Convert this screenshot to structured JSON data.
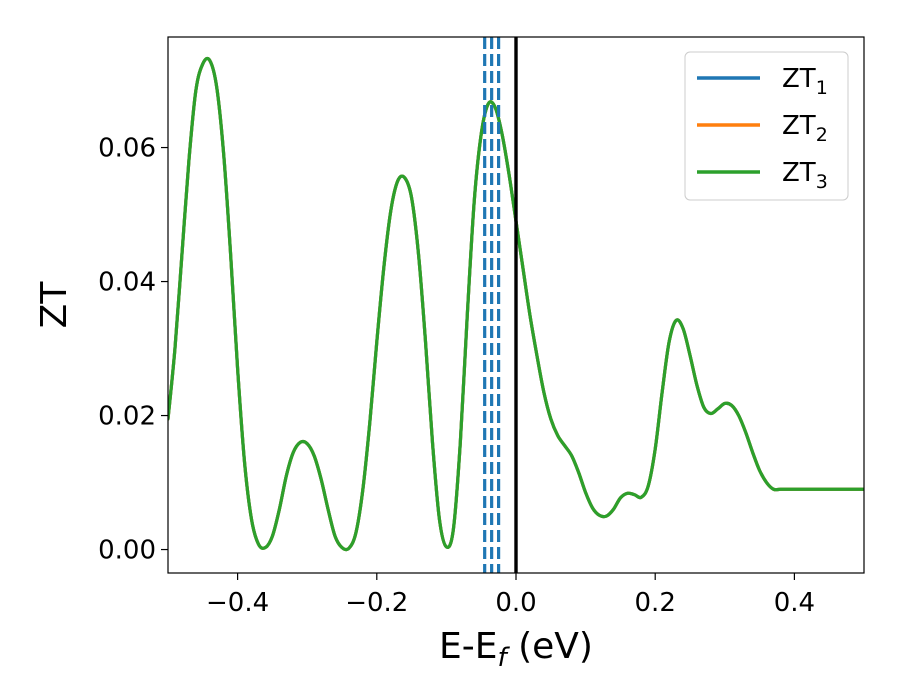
{
  "chart_data": {
    "type": "line",
    "title": "",
    "xlabel": {
      "main": "E-E",
      "sub": "f",
      "suffix": " (eV)"
    },
    "ylabel": "ZT",
    "xlim": [
      -0.5,
      0.5
    ],
    "ylim": [
      -0.0035,
      0.0765
    ],
    "x_ticks": [
      {
        "value": -0.4,
        "label": "−0.4"
      },
      {
        "value": -0.2,
        "label": "−0.2"
      },
      {
        "value": 0.0,
        "label": "0.0"
      },
      {
        "value": 0.2,
        "label": "0.2"
      },
      {
        "value": 0.4,
        "label": "0.4"
      }
    ],
    "y_ticks": [
      {
        "value": 0.0,
        "label": "0.00"
      },
      {
        "value": 0.02,
        "label": "0.02"
      },
      {
        "value": 0.04,
        "label": "0.04"
      },
      {
        "value": 0.06,
        "label": "0.06"
      }
    ],
    "grid": false,
    "legend": {
      "placement": "top-right",
      "entries": [
        {
          "main": "ZT",
          "sub": "1",
          "color": "#1f77b4"
        },
        {
          "main": "ZT",
          "sub": "2",
          "color": "#ff7f0e"
        },
        {
          "main": "ZT",
          "sub": "3",
          "color": "#2ca02c"
        }
      ]
    },
    "series_colors": [
      "#1f77b4",
      "#ff7f0e",
      "#2ca02c"
    ],
    "x": [
      -0.5,
      -0.49,
      -0.48,
      -0.47,
      -0.46,
      -0.45,
      -0.44,
      -0.43,
      -0.42,
      -0.41,
      -0.4,
      -0.39,
      -0.38,
      -0.37,
      -0.36,
      -0.35,
      -0.34,
      -0.33,
      -0.32,
      -0.31,
      -0.3,
      -0.29,
      -0.28,
      -0.27,
      -0.26,
      -0.25,
      -0.24,
      -0.23,
      -0.22,
      -0.21,
      -0.2,
      -0.19,
      -0.18,
      -0.17,
      -0.16,
      -0.15,
      -0.14,
      -0.13,
      -0.12,
      -0.11,
      -0.1,
      -0.09,
      -0.08,
      -0.07,
      -0.06,
      -0.05,
      -0.04,
      -0.03,
      -0.02,
      -0.01,
      0.0,
      0.01,
      0.02,
      0.03,
      0.04,
      0.05,
      0.06,
      0.07,
      0.08,
      0.09,
      0.1,
      0.11,
      0.12,
      0.13,
      0.14,
      0.15,
      0.16,
      0.17,
      0.18,
      0.19,
      0.2,
      0.21,
      0.22,
      0.23,
      0.24,
      0.25,
      0.26,
      0.27,
      0.28,
      0.29,
      0.3,
      0.31,
      0.32,
      0.33,
      0.34,
      0.35,
      0.36,
      0.37,
      0.38,
      0.39,
      0.4,
      0.41,
      0.42,
      0.43,
      0.44,
      0.45,
      0.46,
      0.47,
      0.48,
      0.49,
      0.5
    ],
    "series": [
      {
        "name": "ZT1",
        "values": [
          0.0195,
          0.03,
          0.044,
          0.058,
          0.0685,
          0.0725,
          0.073,
          0.069,
          0.059,
          0.044,
          0.027,
          0.013,
          0.0045,
          0.0008,
          0.0003,
          0.002,
          0.006,
          0.011,
          0.0145,
          0.016,
          0.0158,
          0.014,
          0.0105,
          0.006,
          0.002,
          0.0003,
          0.0002,
          0.0025,
          0.009,
          0.019,
          0.031,
          0.042,
          0.0505,
          0.055,
          0.0555,
          0.0525,
          0.044,
          0.031,
          0.016,
          0.0045,
          0.0004,
          0.003,
          0.016,
          0.035,
          0.052,
          0.062,
          0.0665,
          0.066,
          0.062,
          0.056,
          0.049,
          0.042,
          0.035,
          0.029,
          0.0235,
          0.0195,
          0.017,
          0.0155,
          0.014,
          0.0115,
          0.0085,
          0.0062,
          0.0051,
          0.005,
          0.006,
          0.0077,
          0.0084,
          0.0082,
          0.0078,
          0.0095,
          0.015,
          0.0235,
          0.031,
          0.0342,
          0.033,
          0.029,
          0.0245,
          0.0212,
          0.0203,
          0.021,
          0.0218,
          0.0215,
          0.02,
          0.0175,
          0.0145,
          0.0118,
          0.01,
          0.009,
          0.009,
          0.009,
          0.009,
          0.009,
          0.009,
          0.009,
          0.009,
          0.009,
          0.009,
          0.009,
          0.009,
          0.009,
          0.009
        ]
      },
      {
        "name": "ZT2",
        "values": [
          0.0195,
          0.03,
          0.044,
          0.058,
          0.0685,
          0.0725,
          0.073,
          0.069,
          0.059,
          0.044,
          0.027,
          0.013,
          0.0045,
          0.0008,
          0.0003,
          0.002,
          0.006,
          0.011,
          0.0145,
          0.016,
          0.0158,
          0.014,
          0.0105,
          0.006,
          0.002,
          0.0003,
          0.0002,
          0.0025,
          0.009,
          0.019,
          0.031,
          0.042,
          0.0505,
          0.055,
          0.0555,
          0.0525,
          0.044,
          0.031,
          0.016,
          0.0045,
          0.0004,
          0.003,
          0.016,
          0.035,
          0.052,
          0.062,
          0.0665,
          0.066,
          0.062,
          0.056,
          0.049,
          0.042,
          0.035,
          0.029,
          0.0235,
          0.0195,
          0.017,
          0.0155,
          0.014,
          0.0115,
          0.0085,
          0.0062,
          0.0051,
          0.005,
          0.006,
          0.0077,
          0.0084,
          0.0082,
          0.0078,
          0.0095,
          0.015,
          0.0235,
          0.031,
          0.0342,
          0.033,
          0.029,
          0.0245,
          0.0212,
          0.0203,
          0.021,
          0.0218,
          0.0215,
          0.02,
          0.0175,
          0.0145,
          0.0118,
          0.01,
          0.009,
          0.009,
          0.009,
          0.009,
          0.009,
          0.009,
          0.009,
          0.009,
          0.009,
          0.009,
          0.009,
          0.009,
          0.009,
          0.009
        ]
      },
      {
        "name": "ZT3",
        "values": [
          0.0195,
          0.03,
          0.044,
          0.058,
          0.0685,
          0.0725,
          0.073,
          0.069,
          0.059,
          0.044,
          0.027,
          0.013,
          0.0045,
          0.0008,
          0.0003,
          0.002,
          0.006,
          0.011,
          0.0145,
          0.016,
          0.0158,
          0.014,
          0.0105,
          0.006,
          0.002,
          0.0003,
          0.0002,
          0.0025,
          0.009,
          0.019,
          0.031,
          0.042,
          0.0505,
          0.055,
          0.0555,
          0.0525,
          0.044,
          0.031,
          0.016,
          0.0045,
          0.0004,
          0.003,
          0.016,
          0.035,
          0.052,
          0.062,
          0.0665,
          0.066,
          0.062,
          0.056,
          0.049,
          0.042,
          0.035,
          0.029,
          0.0235,
          0.0195,
          0.017,
          0.0155,
          0.014,
          0.0115,
          0.0085,
          0.0062,
          0.0051,
          0.005,
          0.006,
          0.0077,
          0.0084,
          0.0082,
          0.0078,
          0.0095,
          0.015,
          0.0235,
          0.031,
          0.0342,
          0.033,
          0.029,
          0.0245,
          0.0212,
          0.0203,
          0.021,
          0.0218,
          0.0215,
          0.02,
          0.0175,
          0.0145,
          0.0118,
          0.01,
          0.009,
          0.009,
          0.009,
          0.009,
          0.009,
          0.009,
          0.009,
          0.009,
          0.009,
          0.009,
          0.009,
          0.009,
          0.009,
          0.009
        ]
      }
    ],
    "vertical_lines": [
      {
        "x": -0.045,
        "color": "#1f77b4",
        "style": "dashed"
      },
      {
        "x": -0.035,
        "color": "#1f77b4",
        "style": "dashed"
      },
      {
        "x": -0.025,
        "color": "#1f77b4",
        "style": "dashed"
      },
      {
        "x": 0.0,
        "color": "#000000",
        "style": "solid"
      }
    ]
  }
}
